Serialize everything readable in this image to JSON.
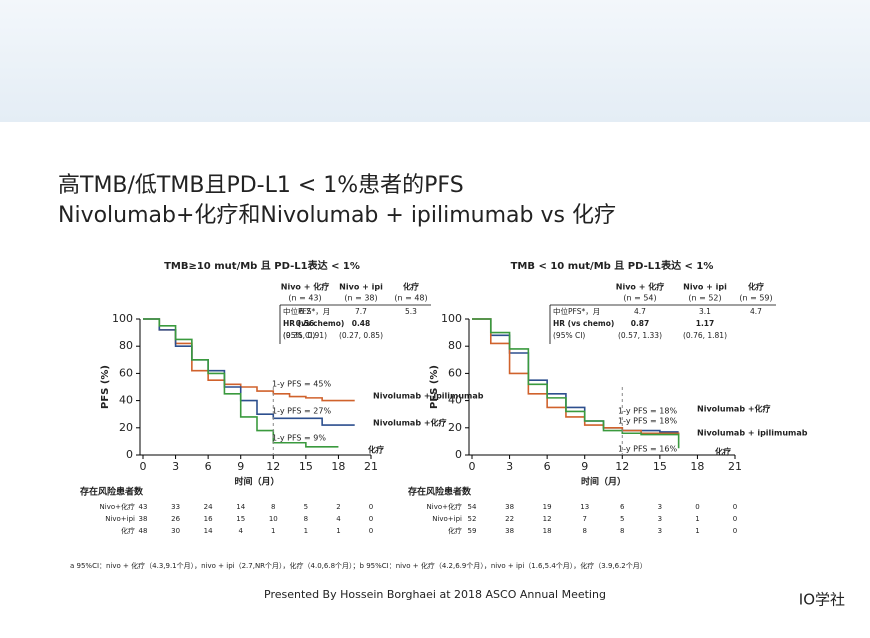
{
  "title_lines": [
    "高TMB/低TMB且PD-L1 < 1%患者的PFS",
    "Nivolumab+化疗和Nivolumab + ipilimumab vs 化疗"
  ],
  "chart_data": [
    {
      "type": "line",
      "step": true,
      "title": "TMB≥10 mut/Mb 且 PD-L1表达 < 1%",
      "x_label": "时间（月）",
      "y_label": "PFS (%)",
      "xlim": [
        0,
        21
      ],
      "xticks": [
        0,
        3,
        6,
        9,
        12,
        15,
        18,
        21
      ],
      "ylim": [
        0,
        100
      ],
      "yticks": [
        0,
        20,
        40,
        60,
        80,
        100
      ],
      "x": [
        0,
        1.5,
        3,
        4.5,
        6,
        7.5,
        9,
        10.5,
        12,
        13.5,
        15,
        16.5,
        18,
        19.5
      ],
      "series": [
        {
          "name": "Nivolumab + ipilimumab",
          "color": "#d0622c",
          "annotation": "1-y PFS = 45%",
          "values": [
            100,
            92,
            82,
            62,
            55,
            52,
            50,
            47,
            45,
            43,
            42,
            40,
            40,
            40
          ]
        },
        {
          "name": "Nivolumab +化疗",
          "color": "#2d4f8e",
          "annotation": "1-y PFS = 27%",
          "values": [
            100,
            92,
            80,
            70,
            62,
            50,
            40,
            30,
            27,
            27,
            27,
            22,
            22,
            22
          ]
        },
        {
          "name": "化疗",
          "color": "#3a9a3e",
          "annotation": "1-y PFS = 9%",
          "values": [
            100,
            95,
            85,
            70,
            60,
            45,
            28,
            18,
            9,
            9,
            6,
            6,
            6,
            null
          ]
        }
      ],
      "stats": {
        "columns": [
          {
            "name": "Nivo + 化疗",
            "n": "(n = 43)"
          },
          {
            "name": "Nivo + ipi",
            "n": "(n = 38)"
          },
          {
            "name": "化疗",
            "n": "(n = 48)"
          }
        ],
        "rows": [
          [
            "中位PFS*，月",
            "6.2",
            "7.7",
            "5.3"
          ],
          [
            "HR (vs chemo)",
            "0.56",
            "0.48",
            null
          ],
          [
            "(95% CI)",
            "(0.35, 0.91)",
            "(0.27, 0.85)",
            null
          ]
        ]
      },
      "risk_title": "存在风险患者数",
      "risk": [
        {
          "name": "Nivo+化疗",
          "counts": [
            43,
            33,
            24,
            14,
            8,
            5,
            2,
            0
          ]
        },
        {
          "name": "Nivo+ipi",
          "counts": [
            38,
            26,
            16,
            15,
            10,
            8,
            4,
            0
          ]
        },
        {
          "name": "化疗",
          "counts": [
            48,
            30,
            14,
            4,
            1,
            1,
            1,
            0
          ]
        }
      ]
    },
    {
      "type": "line",
      "step": true,
      "title": "TMB < 10 mut/Mb 且 PD-L1表达 < 1%",
      "x_label": "时间（月）",
      "y_label": "PFS (%)",
      "xlim": [
        0,
        21
      ],
      "xticks": [
        0,
        3,
        6,
        9,
        12,
        15,
        18,
        21
      ],
      "ylim": [
        0,
        100
      ],
      "yticks": [
        0,
        20,
        40,
        60,
        80,
        100
      ],
      "x": [
        0,
        1.5,
        3,
        4.5,
        6,
        7.5,
        9,
        10.5,
        12,
        13.5,
        15,
        16.5,
        18,
        19.5
      ],
      "series": [
        {
          "name": "Nivolumab +化疗",
          "color": "#2d4f8e",
          "annotation": "1-y PFS = 18%",
          "values": [
            100,
            88,
            75,
            55,
            45,
            35,
            25,
            20,
            18,
            18,
            17,
            17,
            null,
            null
          ]
        },
        {
          "name": "Nivolumab + ipilimumab",
          "color": "#d0622c",
          "annotation": "1-y PFS = 18%",
          "values": [
            100,
            82,
            60,
            45,
            35,
            28,
            22,
            20,
            18,
            16,
            16,
            15,
            null,
            null
          ]
        },
        {
          "name": "化疗",
          "color": "#3a9a3e",
          "annotation": "1-y PFS = 16%",
          "values": [
            100,
            90,
            78,
            52,
            42,
            32,
            25,
            18,
            16,
            15,
            15,
            5,
            null,
            null
          ]
        }
      ],
      "stats": {
        "columns": [
          {
            "name": "Nivo + 化疗",
            "n": "(n = 54)"
          },
          {
            "name": "Nivo + ipi",
            "n": "(n = 52)"
          },
          {
            "name": "化疗",
            "n": "(n = 59)"
          }
        ],
        "rows": [
          [
            "中位PFS*，月",
            "4.7",
            "3.1",
            "4.7"
          ],
          [
            "HR (vs chemo)",
            "0.87",
            "1.17",
            null
          ],
          [
            "(95% CI)",
            "(0.57, 1.33)",
            "(0.76, 1.81)",
            null
          ]
        ]
      },
      "risk_title": "存在风险患者数",
      "risk": [
        {
          "name": "Nivo+化疗",
          "counts": [
            54,
            38,
            19,
            13,
            6,
            3,
            0,
            0
          ]
        },
        {
          "name": "Nivo+ipi",
          "counts": [
            52,
            22,
            12,
            7,
            5,
            3,
            1,
            0
          ]
        },
        {
          "name": "化疗",
          "counts": [
            59,
            38,
            18,
            8,
            8,
            3,
            1,
            0
          ]
        }
      ]
    }
  ],
  "footnote": "a 95%CI：nivo + 化疗（4.3,9.1个月），nivo + ipi（2.7,NR个月），化疗（4.0,6.8个月）；b 95%CI：nivo + 化疗（4.2,6.9个月），nivo + ipi（1.6,5.4个月），化疗（3.9,6.2个月）",
  "presenter": "Presented By Hossein Borghaei at 2018 ASCO Annual Meeting",
  "watermark": "IO学社"
}
